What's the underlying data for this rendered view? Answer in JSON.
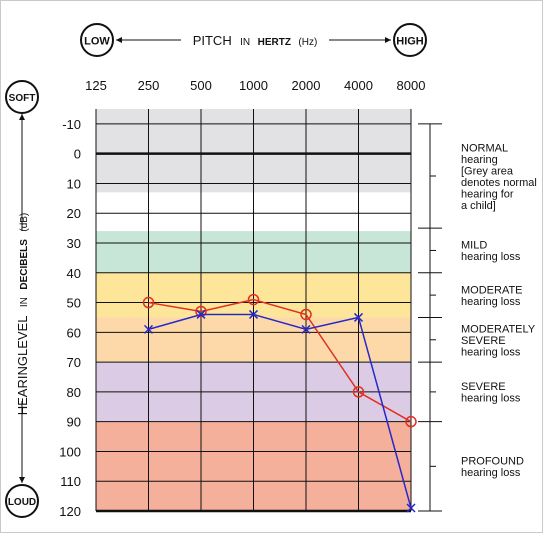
{
  "chart_data": {
    "type": "line",
    "header": {
      "low": "LOW",
      "high": "HIGH",
      "pitch_word": "PITCH",
      "in_word": "IN",
      "hertz_word": "HERTZ",
      "hz_unit": "(Hz)"
    },
    "side": {
      "soft": "SOFT",
      "loud": "LOUD",
      "level_word": "HEARINGLEVEL",
      "in_word": "IN",
      "decibels_word": "DECIBELS",
      "db_unit": "(dB)"
    },
    "categories": [
      "125",
      "250",
      "500",
      "1000",
      "2000",
      "4000",
      "8000"
    ],
    "y_ticks": [
      "-10",
      "0",
      "10",
      "20",
      "30",
      "40",
      "50",
      "60",
      "70",
      "80",
      "90",
      "100",
      "110",
      "120"
    ],
    "ylim": [
      -15,
      120
    ],
    "y_inverted": true,
    "grid": true,
    "bands": [
      {
        "from": -15,
        "to": 13,
        "color": "#e2e2e4"
      },
      {
        "from": 26,
        "to": 40,
        "color": "#c8e6d8"
      },
      {
        "from": 40,
        "to": 55,
        "color": "#fde59a"
      },
      {
        "from": 55,
        "to": 70,
        "color": "#fdd9a9"
      },
      {
        "from": 70,
        "to": 90,
        "color": "#dccbe4"
      },
      {
        "from": 90,
        "to": 120,
        "color": "#f4b09a"
      }
    ],
    "series": [
      {
        "marker": "circle",
        "color": "#e03020",
        "points": [
          [
            1,
            50
          ],
          [
            2,
            53
          ],
          [
            3,
            49
          ],
          [
            4,
            54
          ],
          [
            5,
            80
          ],
          [
            6,
            90
          ]
        ]
      },
      {
        "marker": "x",
        "color": "#2828c8",
        "points": [
          [
            1,
            59
          ],
          [
            2,
            54
          ],
          [
            3,
            54
          ],
          [
            4,
            59
          ],
          [
            5,
            55
          ],
          [
            6,
            119
          ]
        ]
      }
    ],
    "ranges": [
      {
        "from": -10,
        "to": 25,
        "lines": [
          "NORMAL",
          "hearing",
          "[Grey area",
          "denotes normal",
          "hearing for",
          "a child]"
        ]
      },
      {
        "from": 25,
        "to": 40,
        "lines": [
          "MILD",
          "hearing loss"
        ]
      },
      {
        "from": 40,
        "to": 55,
        "lines": [
          "MODERATE",
          "hearing loss"
        ]
      },
      {
        "from": 55,
        "to": 70,
        "lines": [
          "MODERATELY",
          "SEVERE",
          "hearing loss"
        ]
      },
      {
        "from": 70,
        "to": 90,
        "lines": [
          "SEVERE",
          "hearing loss"
        ]
      },
      {
        "from": 90,
        "to": 120,
        "lines": [
          "PROFOUND",
          "hearing loss"
        ]
      }
    ]
  }
}
